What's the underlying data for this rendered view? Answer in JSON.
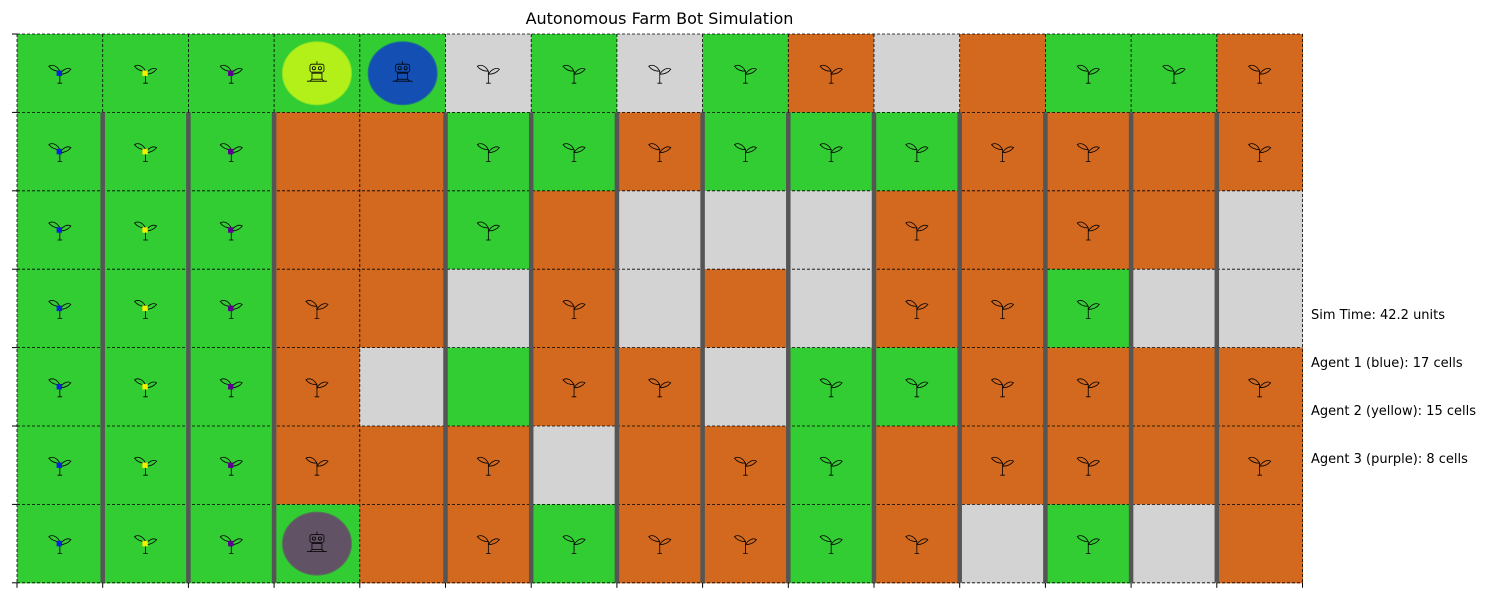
{
  "title": "Autonomous Farm Bot Simulation",
  "colors": {
    "G": "#32cd32",
    "S": "#d2691e",
    "E": "#d3d3d3",
    "fence": "#555555",
    "agent1": "#0a22d8",
    "agent2": "#f4f000",
    "agent3": "#5a008c"
  },
  "grid": {
    "cols": 15,
    "rows": 7,
    "cells": [
      "GGGGGEGEGSESGGS",
      "GGGSSGGSGGGSSSS",
      "GGGSSGSEEESSSSE",
      "GGGSSESESESSGEE",
      "GGGSEGSSEGGSSSS",
      "GGGSSSESSGSSSSS",
      "GGGGSSGSSGSEGES"
    ],
    "plants": [
      "111111111100111",
      "111001111111101",
      "111001000010100",
      "111100100011100",
      "111100110111101",
      "111101001101101",
      "111101111110100"
    ],
    "markers": [
      "agent1",
      "agent2",
      "agent3"
    ],
    "fences": {
      "x_boundaries": [
        1,
        2,
        3,
        5,
        6,
        7,
        8,
        9,
        10,
        11,
        12,
        13,
        14
      ],
      "from_row": 1,
      "to_row": 6
    }
  },
  "robots": [
    {
      "name": "robot-agent-2",
      "col": 3,
      "row": 0,
      "color": "#b3f01a"
    },
    {
      "name": "robot-agent-1",
      "col": 4,
      "row": 0,
      "color": "#1450b4"
    },
    {
      "name": "robot-agent-3",
      "col": 3,
      "row": 6,
      "color": "#625266"
    }
  ],
  "info": {
    "sim_time": "Sim Time: 42.2 units",
    "agent1": "Agent 1 (blue): 17 cells",
    "agent2": "Agent 2 (yellow): 15 cells",
    "agent3": "Agent 3 (purple): 8 cells"
  }
}
